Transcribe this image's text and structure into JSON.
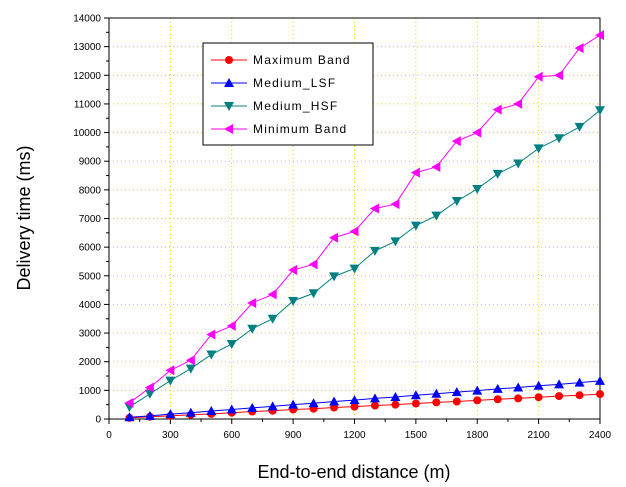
{
  "chart_data": {
    "type": "line",
    "xlabel": "End-to-end distance (m)",
    "ylabel": "Delivery time (ms)",
    "xlim": [
      0,
      2400
    ],
    "ylim": [
      0,
      14000
    ],
    "x_ticks": [
      0,
      300,
      600,
      900,
      1200,
      1500,
      1800,
      2100,
      2400
    ],
    "y_ticks": [
      0,
      1000,
      2000,
      3000,
      4000,
      5000,
      6000,
      7000,
      8000,
      9000,
      10000,
      11000,
      12000,
      13000,
      14000
    ],
    "grid": true,
    "legend_position": "top-left",
    "x": [
      100,
      200,
      300,
      400,
      500,
      600,
      700,
      800,
      900,
      1000,
      1100,
      1200,
      1300,
      1400,
      1500,
      1600,
      1700,
      1800,
      1900,
      2000,
      2100,
      2200,
      2300,
      2400
    ],
    "series": [
      {
        "name": "Maximum Band",
        "color": "#ff0000",
        "marker": "circle",
        "values": [
          40,
          80,
          110,
          150,
          180,
          220,
          260,
          290,
          330,
          360,
          400,
          430,
          470,
          500,
          540,
          580,
          610,
          650,
          690,
          720,
          760,
          800,
          830,
          870
        ]
      },
      {
        "name": "Medium_LSF",
        "color": "#0000ff",
        "marker": "triangle-up",
        "values": [
          60,
          110,
          170,
          220,
          280,
          330,
          390,
          440,
          500,
          550,
          610,
          660,
          720,
          770,
          830,
          880,
          940,
          990,
          1050,
          1100,
          1160,
          1210,
          1270,
          1330
        ]
      },
      {
        "name": "Medium_HSF",
        "color": "#008080",
        "marker": "triangle-down",
        "values": [
          420,
          880,
          1340,
          1760,
          2250,
          2620,
          3150,
          3500,
          4120,
          4390,
          4980,
          5250,
          5870,
          6200,
          6750,
          7100,
          7610,
          8030,
          8560,
          8920,
          9450,
          9800,
          10200,
          10780
        ]
      },
      {
        "name": "Minimum Band",
        "color": "#ff00ff",
        "marker": "triangle-left",
        "values": [
          560,
          1100,
          1700,
          2050,
          2950,
          3250,
          4050,
          4350,
          5200,
          5400,
          6330,
          6550,
          7350,
          7500,
          8600,
          8800,
          9700,
          10000,
          10800,
          11000,
          11950,
          12000,
          12950,
          13400
        ]
      }
    ]
  }
}
